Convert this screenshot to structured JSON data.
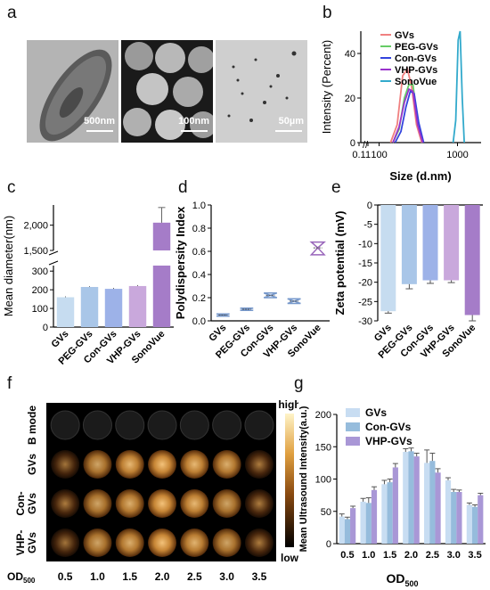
{
  "panels": {
    "a": "a",
    "b": "b",
    "c": "c",
    "d": "d",
    "e": "e",
    "f": "f",
    "g": "g"
  },
  "panel_a": {
    "scales": [
      "500nm",
      "100nm",
      "50µm"
    ]
  },
  "panel_f": {
    "row_labels": [
      "B mode",
      "GVs",
      "Con-\nGVs",
      "VHP-\nGVs"
    ],
    "row_label_lines": [
      [
        "B mode"
      ],
      [
        "GVs"
      ],
      [
        "Con-",
        "GVs"
      ],
      [
        "VHP-",
        "GVs"
      ]
    ],
    "x_title": "OD500",
    "x_ticks": [
      "0.5",
      "1.0",
      "1.5",
      "2.0",
      "2.5",
      "3.0",
      "3.5"
    ],
    "colorbar": {
      "high": "high",
      "low": "low"
    }
  },
  "colors": {
    "GVs": "#f08080",
    "PEG-GVs": "#66cc66",
    "Con-GVs": "#3344dd",
    "VHP-GVs": "#9933cc",
    "SonoVue": "#33aacc",
    "bar_c": [
      "#c6dcf0",
      "#a9c6e8",
      "#9db2e8",
      "#c9a8dc",
      "#a57cc8"
    ],
    "g_GVs": "#c8ddf2",
    "g_Con": "#96bcdc",
    "g_VHP": "#a997d6"
  },
  "chart_data": [
    {
      "id": "b",
      "type": "line",
      "xlabel": "Size (d.nm)",
      "ylabel": "Intensity (Percent)",
      "ylim": [
        0,
        50
      ],
      "yticks": [
        0,
        20,
        40
      ],
      "xticks": [
        "0.1",
        "1",
        "100",
        "1000"
      ],
      "series": [
        {
          "name": "GVs",
          "x": [
            140,
            170,
            200,
            230,
            260,
            300,
            350
          ],
          "values": [
            0,
            8,
            30,
            33,
            25,
            8,
            0
          ]
        },
        {
          "name": "PEG-GVs",
          "x": [
            150,
            180,
            210,
            240,
            270,
            310,
            360
          ],
          "values": [
            0,
            6,
            20,
            26,
            26,
            10,
            0
          ]
        },
        {
          "name": "Con-GVs",
          "x": [
            160,
            190,
            220,
            250,
            280,
            320,
            370
          ],
          "values": [
            0,
            5,
            16,
            23,
            22,
            9,
            0
          ]
        },
        {
          "name": "VHP-GVs",
          "x": [
            150,
            180,
            210,
            240,
            270,
            310,
            360
          ],
          "values": [
            0,
            7,
            18,
            24,
            23,
            8,
            0
          ]
        },
        {
          "name": "SonoVue",
          "x": [
            880,
            950,
            1020,
            1080,
            1150,
            1220
          ],
          "values": [
            0,
            10,
            46,
            50,
            20,
            0
          ]
        }
      ]
    },
    {
      "id": "c",
      "type": "bar",
      "ylabel": "Mean diameter(nm)",
      "categories": [
        "GVs",
        "PEG-GVs",
        "Con-GVs",
        "VHP-GVs",
        "SonoVue"
      ],
      "values": [
        160,
        215,
        205,
        220,
        2050
      ],
      "errors": [
        5,
        4,
        5,
        5,
        300
      ],
      "yticks_low": [
        "0",
        "100",
        "200",
        "300"
      ],
      "yticks_high": [
        "1,500",
        "2,000"
      ],
      "ylim_low": [
        0,
        320
      ],
      "ylim_high": [
        1500,
        2400
      ]
    },
    {
      "id": "d",
      "type": "box",
      "ylabel": "Polydispersity Index",
      "categories": [
        "GVs",
        "PEG-GVs",
        "Con-GVs",
        "VHP-GVs",
        "SonoVue"
      ],
      "values": [
        0.05,
        0.1,
        0.22,
        0.17,
        0.63
      ],
      "ranges": [
        [
          0.04,
          0.06
        ],
        [
          0.09,
          0.11
        ],
        [
          0.2,
          0.24
        ],
        [
          0.15,
          0.19
        ],
        [
          0.57,
          0.68
        ]
      ],
      "ylim": [
        0,
        1.0
      ],
      "yticks": [
        "0.0",
        "0.2",
        "0.4",
        "0.6",
        "0.8",
        "1.0"
      ]
    },
    {
      "id": "e",
      "type": "bar",
      "ylabel": "Zeta  potential (mV)",
      "categories": [
        "GVs",
        "PEG-GVs",
        "Con-GVs",
        "VHP-GVs",
        "SonoVue"
      ],
      "values": [
        -27.5,
        -20.5,
        -19.5,
        -19.5,
        -28.5
      ],
      "errors": [
        0.5,
        1.2,
        0.8,
        0.6,
        1.5
      ],
      "ylim": [
        -30,
        0
      ],
      "yticks": [
        "0",
        "-5",
        "-10",
        "-15",
        "-20",
        "-25",
        "-30"
      ]
    },
    {
      "id": "g",
      "type": "bar",
      "ylabel": "Mean Ultrasound Intensity(a.u.)",
      "xlabel": "OD500",
      "categories": [
        "0.5",
        "1.0",
        "1.5",
        "2.0",
        "2.5",
        "3.0",
        "3.5"
      ],
      "ylim": [
        0,
        200
      ],
      "yticks": [
        "0",
        "50",
        "100",
        "150",
        "200"
      ],
      "series": [
        {
          "name": "GVs",
          "values": [
            42,
            65,
            92,
            142,
            125,
            98,
            60
          ],
          "errors": [
            4,
            5,
            6,
            5,
            20,
            4,
            3
          ]
        },
        {
          "name": "Con-GVs",
          "values": [
            38,
            63,
            95,
            143,
            128,
            80,
            57
          ],
          "errors": [
            3,
            8,
            5,
            5,
            12,
            4,
            3
          ]
        },
        {
          "name": "VHP-GVs",
          "values": [
            55,
            83,
            118,
            135,
            110,
            80,
            75
          ],
          "errors": [
            3,
            5,
            6,
            5,
            6,
            3,
            3
          ]
        }
      ]
    }
  ]
}
